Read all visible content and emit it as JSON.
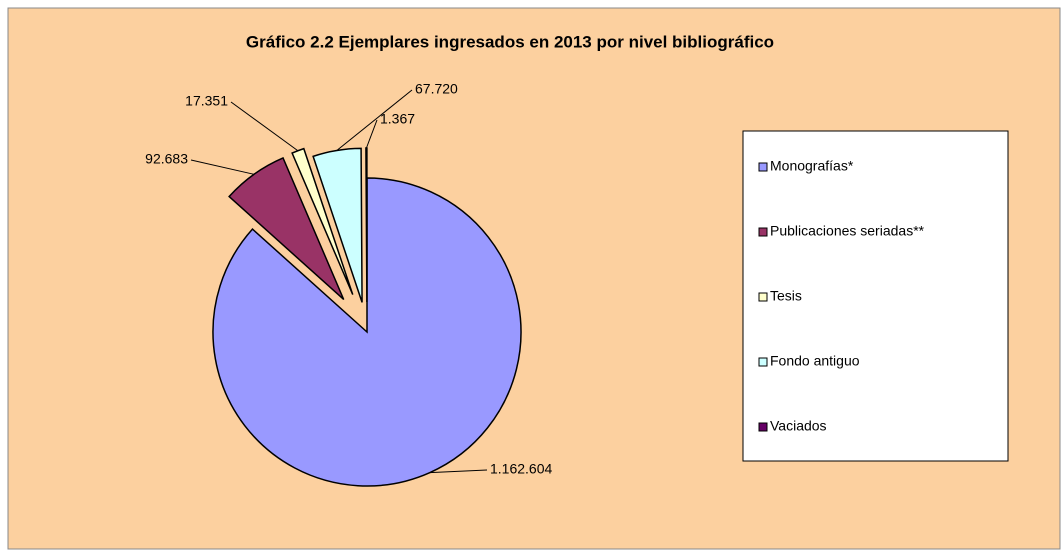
{
  "chart_data": {
    "type": "pie",
    "title": "Gráfico 2.2 Ejemplares ingresados  en 2013 por nivel bibliográfico",
    "categories": [
      "Monografías*",
      "Publicaciones seriadas**",
      "Tesis",
      "Fondo antiguo",
      "Vaciados"
    ],
    "values": [
      1162604,
      92683,
      17351,
      67720,
      1367
    ],
    "value_labels": [
      "1.162.604",
      "92.683",
      "17.351",
      "67.720",
      "1.367"
    ],
    "colors": [
      "#9999ff",
      "#993366",
      "#ffffcc",
      "#ccffff",
      "#660066"
    ],
    "legend": "right"
  }
}
